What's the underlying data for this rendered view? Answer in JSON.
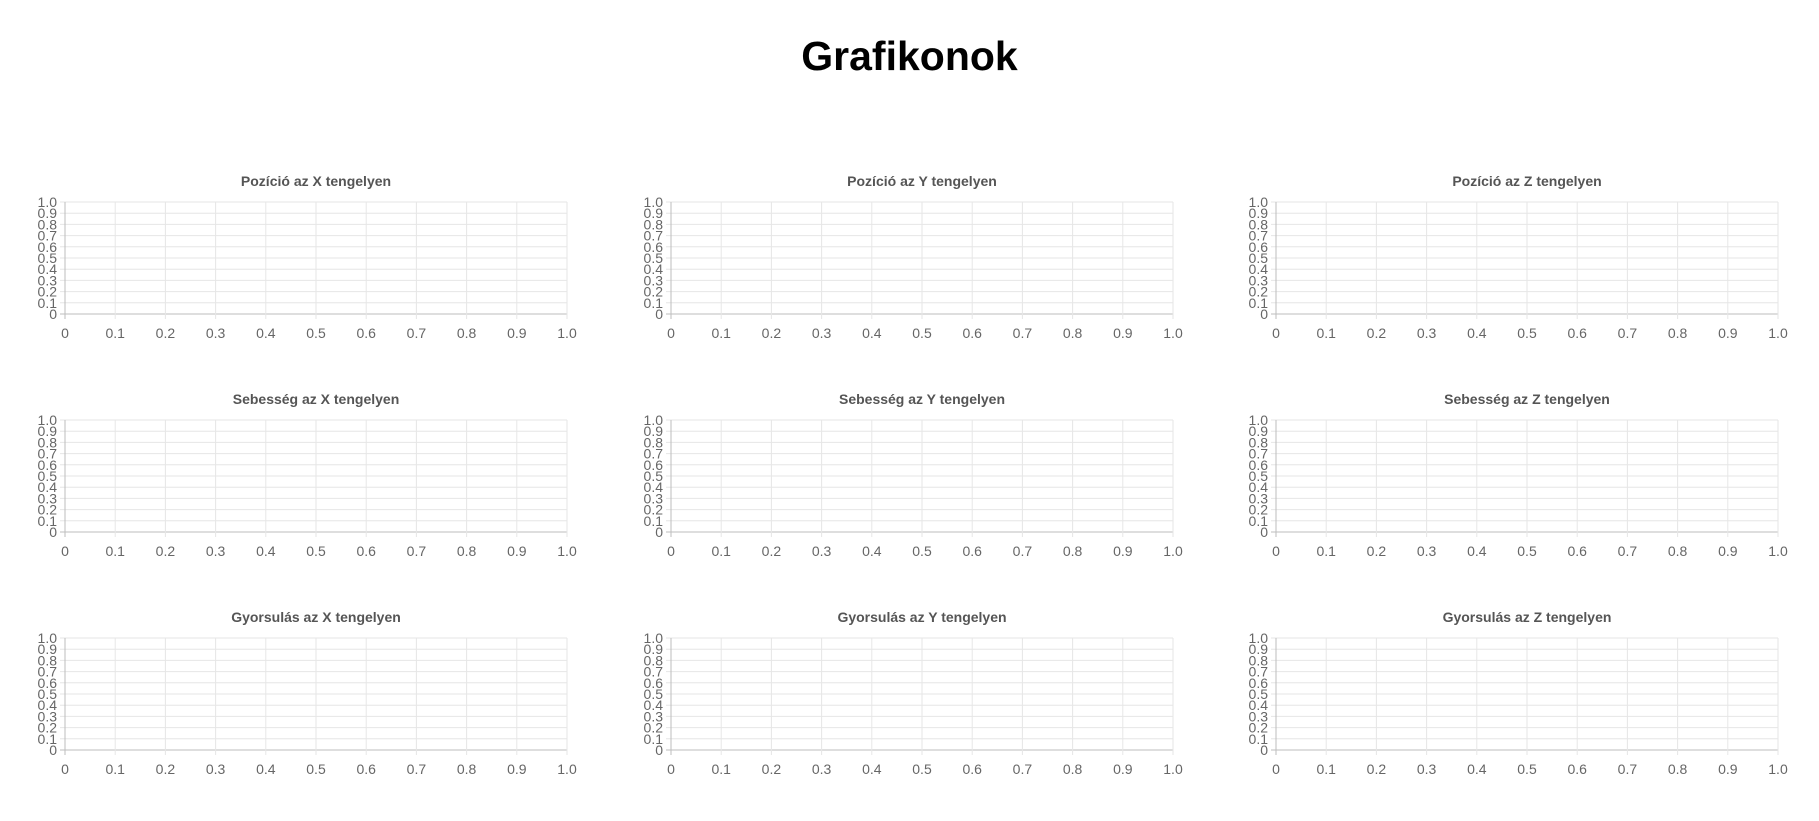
{
  "page": {
    "title": "Grafikonok"
  },
  "colors": {
    "text": "#000000",
    "chart_title": "#555555",
    "tick_label": "#666666",
    "grid": "#e6e6e6",
    "axis": "#bdbdbd"
  },
  "chart_data": [
    {
      "type": "line",
      "title": "Pozíció az X tengelyen",
      "series": [],
      "xlim": [
        0,
        1
      ],
      "ylim": [
        0,
        1
      ],
      "x_ticks": [
        "0",
        "0.1",
        "0.2",
        "0.3",
        "0.4",
        "0.5",
        "0.6",
        "0.7",
        "0.8",
        "0.9",
        "1.0"
      ],
      "y_ticks": [
        "0",
        "0.1",
        "0.2",
        "0.3",
        "0.4",
        "0.5",
        "0.6",
        "0.7",
        "0.8",
        "0.9",
        "1.0"
      ],
      "grid": true,
      "legend": "none"
    },
    {
      "type": "line",
      "title": "Pozíció az Y tengelyen",
      "series": [],
      "xlim": [
        0,
        1
      ],
      "ylim": [
        0,
        1
      ],
      "x_ticks": [
        "0",
        "0.1",
        "0.2",
        "0.3",
        "0.4",
        "0.5",
        "0.6",
        "0.7",
        "0.8",
        "0.9",
        "1.0"
      ],
      "y_ticks": [
        "0",
        "0.1",
        "0.2",
        "0.3",
        "0.4",
        "0.5",
        "0.6",
        "0.7",
        "0.8",
        "0.9",
        "1.0"
      ],
      "grid": true,
      "legend": "none"
    },
    {
      "type": "line",
      "title": "Pozíció az Z tengelyen",
      "series": [],
      "xlim": [
        0,
        1
      ],
      "ylim": [
        0,
        1
      ],
      "x_ticks": [
        "0",
        "0.1",
        "0.2",
        "0.3",
        "0.4",
        "0.5",
        "0.6",
        "0.7",
        "0.8",
        "0.9",
        "1.0"
      ],
      "y_ticks": [
        "0",
        "0.1",
        "0.2",
        "0.3",
        "0.4",
        "0.5",
        "0.6",
        "0.7",
        "0.8",
        "0.9",
        "1.0"
      ],
      "grid": true,
      "legend": "none"
    },
    {
      "type": "line",
      "title": "Sebesség az X tengelyen",
      "series": [],
      "xlim": [
        0,
        1
      ],
      "ylim": [
        0,
        1
      ],
      "x_ticks": [
        "0",
        "0.1",
        "0.2",
        "0.3",
        "0.4",
        "0.5",
        "0.6",
        "0.7",
        "0.8",
        "0.9",
        "1.0"
      ],
      "y_ticks": [
        "0",
        "0.1",
        "0.2",
        "0.3",
        "0.4",
        "0.5",
        "0.6",
        "0.7",
        "0.8",
        "0.9",
        "1.0"
      ],
      "grid": true,
      "legend": "none"
    },
    {
      "type": "line",
      "title": "Sebesség az Y tengelyen",
      "series": [],
      "xlim": [
        0,
        1
      ],
      "ylim": [
        0,
        1
      ],
      "x_ticks": [
        "0",
        "0.1",
        "0.2",
        "0.3",
        "0.4",
        "0.5",
        "0.6",
        "0.7",
        "0.8",
        "0.9",
        "1.0"
      ],
      "y_ticks": [
        "0",
        "0.1",
        "0.2",
        "0.3",
        "0.4",
        "0.5",
        "0.6",
        "0.7",
        "0.8",
        "0.9",
        "1.0"
      ],
      "grid": true,
      "legend": "none"
    },
    {
      "type": "line",
      "title": "Sebesség az Z tengelyen",
      "series": [],
      "xlim": [
        0,
        1
      ],
      "ylim": [
        0,
        1
      ],
      "x_ticks": [
        "0",
        "0.1",
        "0.2",
        "0.3",
        "0.4",
        "0.5",
        "0.6",
        "0.7",
        "0.8",
        "0.9",
        "1.0"
      ],
      "y_ticks": [
        "0",
        "0.1",
        "0.2",
        "0.3",
        "0.4",
        "0.5",
        "0.6",
        "0.7",
        "0.8",
        "0.9",
        "1.0"
      ],
      "grid": true,
      "legend": "none"
    },
    {
      "type": "line",
      "title": "Gyorsulás az X tengelyen",
      "series": [],
      "xlim": [
        0,
        1
      ],
      "ylim": [
        0,
        1
      ],
      "x_ticks": [
        "0",
        "0.1",
        "0.2",
        "0.3",
        "0.4",
        "0.5",
        "0.6",
        "0.7",
        "0.8",
        "0.9",
        "1.0"
      ],
      "y_ticks": [
        "0",
        "0.1",
        "0.2",
        "0.3",
        "0.4",
        "0.5",
        "0.6",
        "0.7",
        "0.8",
        "0.9",
        "1.0"
      ],
      "grid": true,
      "legend": "none"
    },
    {
      "type": "line",
      "title": "Gyorsulás az Y tengelyen",
      "series": [],
      "xlim": [
        0,
        1
      ],
      "ylim": [
        0,
        1
      ],
      "x_ticks": [
        "0",
        "0.1",
        "0.2",
        "0.3",
        "0.4",
        "0.5",
        "0.6",
        "0.7",
        "0.8",
        "0.9",
        "1.0"
      ],
      "y_ticks": [
        "0",
        "0.1",
        "0.2",
        "0.3",
        "0.4",
        "0.5",
        "0.6",
        "0.7",
        "0.8",
        "0.9",
        "1.0"
      ],
      "grid": true,
      "legend": "none"
    },
    {
      "type": "line",
      "title": "Gyorsulás az Z tengelyen",
      "series": [],
      "xlim": [
        0,
        1
      ],
      "ylim": [
        0,
        1
      ],
      "x_ticks": [
        "0",
        "0.1",
        "0.2",
        "0.3",
        "0.4",
        "0.5",
        "0.6",
        "0.7",
        "0.8",
        "0.9",
        "1.0"
      ],
      "y_ticks": [
        "0",
        "0.1",
        "0.2",
        "0.3",
        "0.4",
        "0.5",
        "0.6",
        "0.7",
        "0.8",
        "0.9",
        "1.0"
      ],
      "grid": true,
      "legend": "none"
    }
  ]
}
